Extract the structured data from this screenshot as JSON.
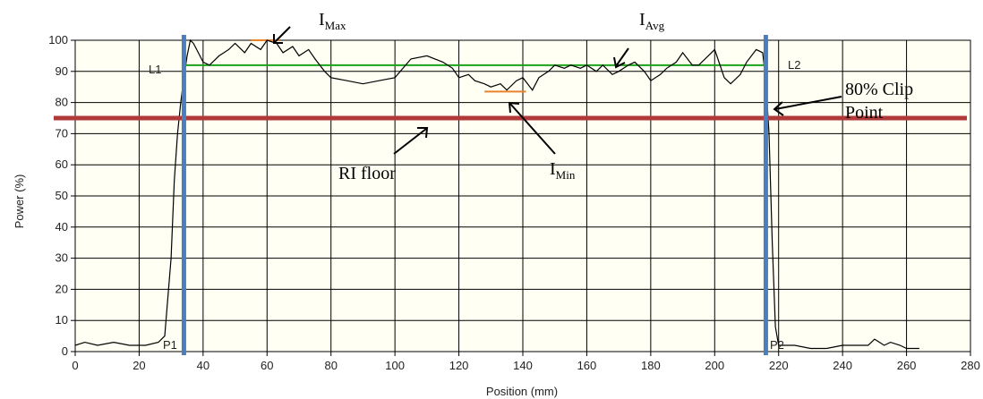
{
  "chart_data": {
    "type": "line",
    "xlabel": "Position (mm)",
    "ylabel": "Power (%)",
    "xlim": [
      0,
      280
    ],
    "ylim": [
      0,
      100
    ],
    "xticks": [
      "0",
      "20",
      "40",
      "60",
      "80",
      "100",
      "120",
      "140",
      "160",
      "180",
      "200",
      "220",
      "240",
      "260",
      "280"
    ],
    "yticks": [
      "0",
      "10",
      "20",
      "30",
      "40",
      "50",
      "60",
      "70",
      "80",
      "90",
      "100"
    ],
    "grid": true,
    "series": [
      {
        "x": [
          0,
          3,
          7,
          12,
          17,
          22,
          26,
          28,
          30,
          31,
          32,
          33,
          34,
          35,
          36,
          37,
          38,
          40,
          42,
          45,
          48,
          50,
          53,
          55,
          58,
          60,
          63,
          65,
          68,
          70,
          73,
          75,
          78,
          80,
          85,
          90,
          95,
          100,
          105,
          110,
          115,
          118,
          120,
          123,
          125,
          128,
          130,
          133,
          135,
          138,
          140,
          143,
          145,
          148,
          150,
          153,
          155,
          158,
          160,
          163,
          165,
          168,
          170,
          173,
          175,
          178,
          180,
          183,
          185,
          188,
          190,
          193,
          195,
          198,
          200,
          203,
          205,
          208,
          210,
          213,
          215,
          216,
          217,
          218,
          219,
          220,
          222,
          225,
          230,
          235,
          240,
          245,
          248,
          250,
          253,
          255,
          258,
          260,
          262,
          264
        ],
        "y": [
          2,
          3,
          2,
          3,
          2,
          2,
          3,
          5,
          30,
          55,
          70,
          80,
          88,
          95,
          100,
          99,
          97,
          93,
          92,
          95,
          97,
          99,
          96,
          99,
          97,
          100,
          99,
          96,
          98,
          95,
          97,
          94,
          90,
          88,
          87,
          86,
          87,
          88,
          94,
          95,
          93,
          91,
          88,
          89,
          87,
          86,
          85,
          86,
          84,
          87,
          88,
          84,
          88,
          90,
          92,
          91,
          92,
          91,
          92,
          90,
          92,
          89,
          90,
          92,
          93,
          90,
          87,
          89,
          91,
          93,
          96,
          92,
          92,
          95,
          97,
          88,
          86,
          89,
          93,
          97,
          96,
          87,
          70,
          35,
          8,
          2,
          2,
          2,
          1,
          1,
          2,
          2,
          2,
          4,
          2,
          3,
          2,
          1,
          1,
          1
        ],
        "color": "#000000"
      }
    ],
    "reference_lines": {
      "avg": {
        "value": 92,
        "from": 34,
        "to": 216,
        "color": "#1aa31a"
      },
      "floor": {
        "value": 75,
        "color": "#b03a3a"
      },
      "max_mark": {
        "value": 100,
        "from": 55,
        "to": 64,
        "color": "#e8822b"
      },
      "min_mark": {
        "value": 83.5,
        "from": 128,
        "to": 141,
        "color": "#e8822b"
      },
      "clip_left": {
        "value": 34,
        "color": "#4a7ebf"
      },
      "clip_right": {
        "value": 216,
        "color": "#4a7ebf"
      }
    },
    "markers": {
      "L1": "L1",
      "L2": "L2",
      "P1": "P1",
      "P2": "P2"
    },
    "annotations": {
      "imax_main": "I",
      "imax_sub": "Max",
      "iavg_main": "I",
      "iavg_sub": "Avg",
      "imin_main": "I",
      "imin_sub": "Min",
      "clip_line1": "80% Clip",
      "clip_line2": "Point",
      "floor": "RI floor"
    },
    "colors": {
      "background": "#fffff4",
      "grid": "#000000"
    }
  }
}
